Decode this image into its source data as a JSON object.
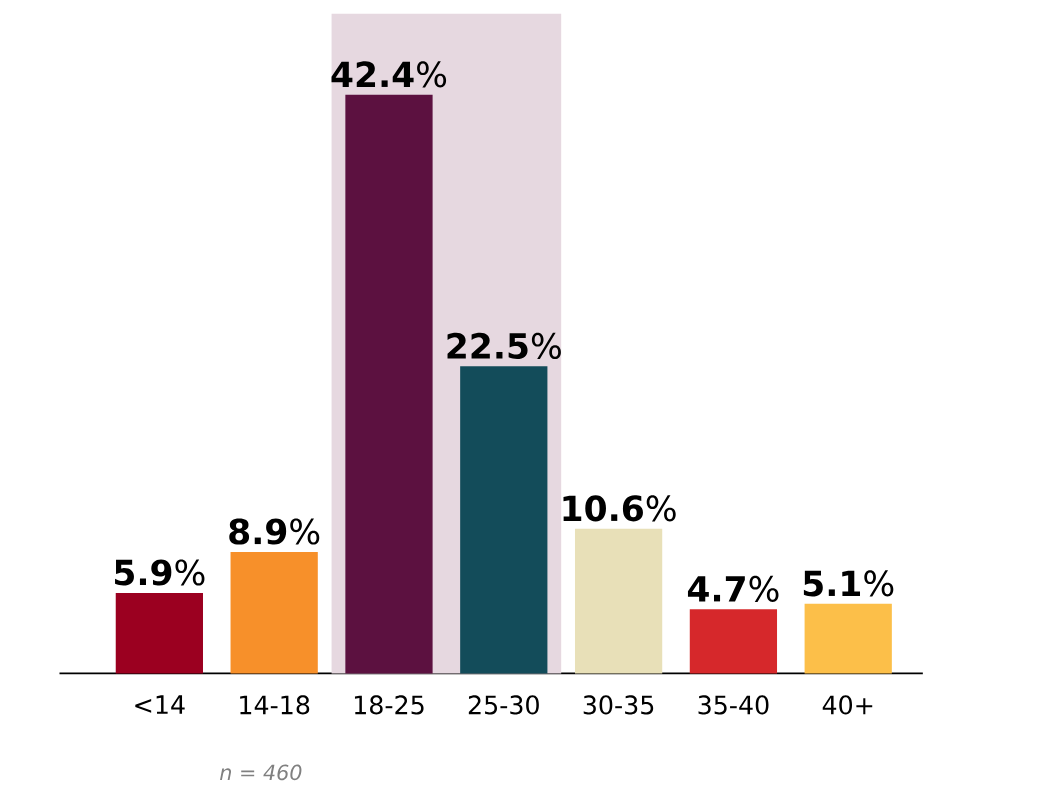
{
  "chart_data": {
    "type": "bar",
    "categories": [
      "<14",
      "14-18",
      "18-25",
      "25-30",
      "30-35",
      "35-40",
      "40+"
    ],
    "values": [
      5.9,
      8.9,
      42.4,
      22.5,
      10.6,
      4.7,
      5.1
    ],
    "colors": [
      "#9b0020",
      "#f7902a",
      "#5c1140",
      "#134c5a",
      "#e8e0b8",
      "#d6282b",
      "#fcbf49"
    ],
    "value_labels": [
      "**5.9**%",
      "**8.9**%",
      "**42.4**%",
      "**22.5**%",
      "**10.6**%",
      "**4.7**%",
      "**5.1**%"
    ],
    "bands": [
      {
        "axis": "x",
        "from": "18-25",
        "to": "25-30",
        "color": "#e6d8e0"
      }
    ],
    "annotations": [
      "n = 460"
    ]
  }
}
